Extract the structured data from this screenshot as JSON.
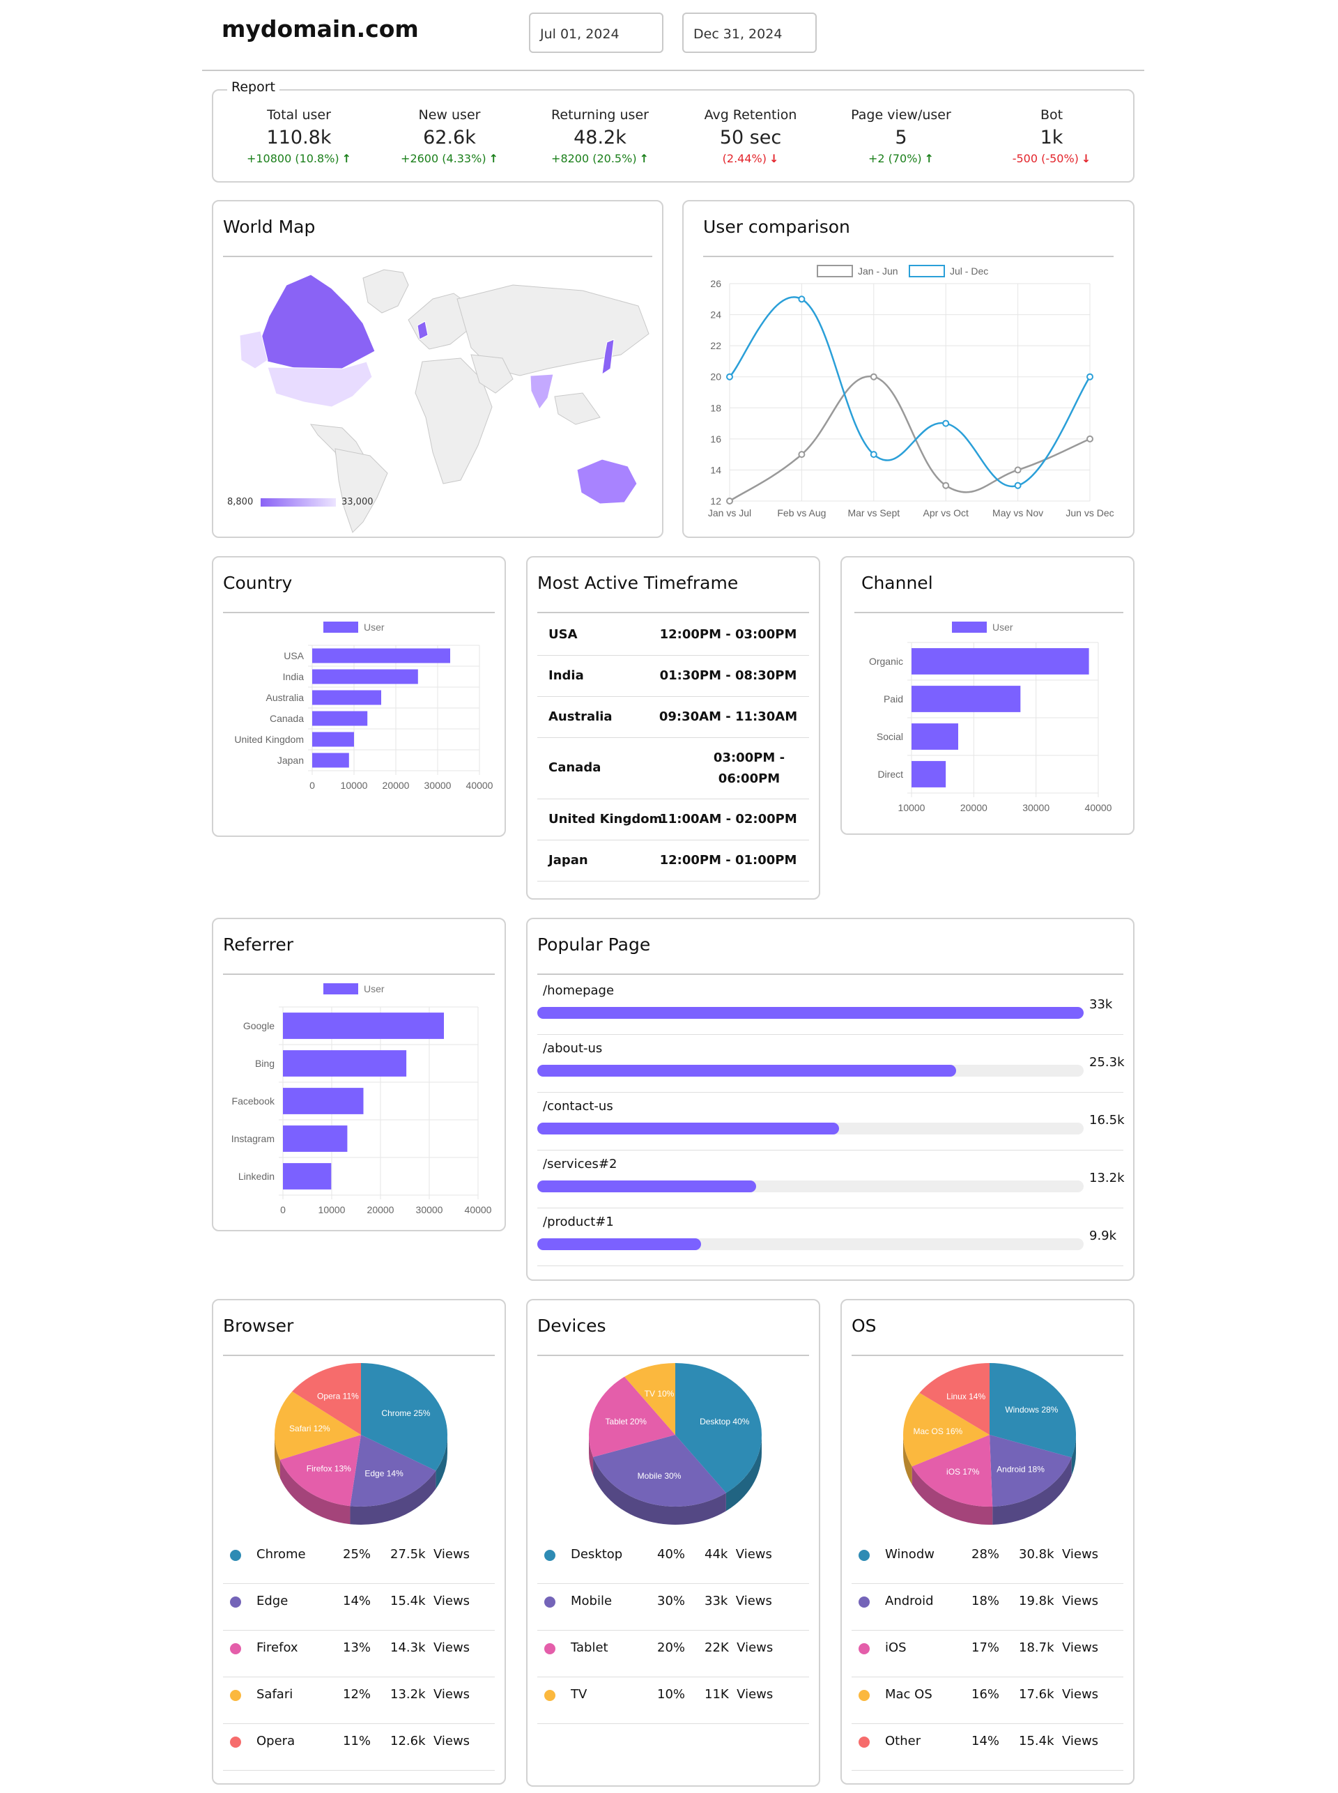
{
  "header": {
    "site": "mydomain.com",
    "start_date": "Jul 01, 2024",
    "end_date": "Dec 31, 2024"
  },
  "report": {
    "legend": "Report",
    "stats": [
      {
        "label": "Total user",
        "value": "110.8k",
        "change": "+10800 (10.8%)",
        "direction": "up"
      },
      {
        "label": "New user",
        "value": "62.6k",
        "change": "+2600 (4.33%)",
        "direction": "up"
      },
      {
        "label": "Returning user",
        "value": "48.2k",
        "change": "+8200 (20.5%)",
        "direction": "up"
      },
      {
        "label": "Avg Retention",
        "value": "50 sec",
        "change": "(2.44%)",
        "direction": "down"
      },
      {
        "label": "Page view/user",
        "value": "5",
        "change": "+2 (70%)",
        "direction": "up"
      },
      {
        "label": "Bot",
        "value": "1k",
        "change": "-500 (-50%)",
        "direction": "down"
      }
    ]
  },
  "world_map": {
    "title": "World Map",
    "legend_min": "8,800",
    "legend_max": "33,000",
    "colors": {
      "low": "#e8dcff",
      "high": "#8a63f5",
      "none": "#eeeeee"
    }
  },
  "user_comparison": {
    "title": "User comparison",
    "chart_data": {
      "type": "line",
      "categories": [
        "Jan vs Jul",
        "Feb vs Aug",
        "Mar vs Sept",
        "Apr vs Oct",
        "May vs Nov",
        "Jun vs Dec"
      ],
      "series": [
        {
          "name": "Jan - Jun",
          "values": [
            12,
            15,
            20,
            13,
            14,
            16
          ],
          "color": "#999999"
        },
        {
          "name": "Jul - Dec",
          "values": [
            20,
            25,
            15,
            17,
            13,
            20
          ],
          "color": "#2a9fd8"
        }
      ],
      "yticks": [
        "12",
        "14",
        "16",
        "18",
        "20",
        "22",
        "24",
        "26"
      ],
      "ylim": [
        12,
        26
      ],
      "grid": true,
      "legend": "top"
    }
  },
  "country": {
    "title": "Country",
    "chart_data": {
      "type": "bar",
      "orientation": "horizontal",
      "legend": "User",
      "categories": [
        "USA",
        "India",
        "Australia",
        "Canada",
        "United Kingdom",
        "Japan"
      ],
      "values": [
        33000,
        25300,
        16500,
        13200,
        10000,
        8800
      ],
      "xticks": [
        "0",
        "10000",
        "20000",
        "30000",
        "40000"
      ],
      "xlim": [
        0,
        40000
      ],
      "color": "#7b61ff"
    }
  },
  "timeframe": {
    "title": "Most Active Timeframe",
    "rows": [
      {
        "country": "USA",
        "time": "12:00PM - 03:00PM"
      },
      {
        "country": "India",
        "time": "01:30PM - 08:30PM"
      },
      {
        "country": "Australia",
        "time": "09:30AM - 11:30AM"
      },
      {
        "country": "Canada",
        "time": "03:00PM - 06:00PM"
      },
      {
        "country": "United Kingdom",
        "time": "11:00AM - 02:00PM"
      },
      {
        "country": "Japan",
        "time": "12:00PM - 01:00PM"
      }
    ]
  },
  "channel": {
    "title": "Channel",
    "chart_data": {
      "type": "bar",
      "orientation": "horizontal",
      "legend": "User",
      "categories": [
        "Organic",
        "Paid",
        "Social",
        "Direct"
      ],
      "values": [
        38500,
        27500,
        17500,
        15500
      ],
      "xticks": [
        "10000",
        "20000",
        "30000",
        "40000"
      ],
      "xlim": [
        10000,
        40000
      ],
      "color": "#7b61ff"
    }
  },
  "referrer": {
    "title": "Referrer",
    "chart_data": {
      "type": "bar",
      "orientation": "horizontal",
      "legend": "User",
      "categories": [
        "Google",
        "Bing",
        "Facebook",
        "Instagram",
        "Linkedin"
      ],
      "values": [
        33000,
        25300,
        16500,
        13200,
        9900
      ],
      "xticks": [
        "0",
        "10000",
        "20000",
        "30000",
        "40000"
      ],
      "xlim": [
        0,
        40000
      ],
      "color": "#7b61ff"
    }
  },
  "popular_page": {
    "title": "Popular Page",
    "items": [
      {
        "page": "/homepage",
        "value": "33k",
        "fraction": 1.0
      },
      {
        "page": "/about-us",
        "value": "25.3k",
        "fraction": 0.767
      },
      {
        "page": "/contact-us",
        "value": "16.5k",
        "fraction": 0.552
      },
      {
        "page": "/services#2",
        "value": "13.2k",
        "fraction": 0.401
      },
      {
        "page": "/product#1",
        "value": "9.9k",
        "fraction": 0.3
      }
    ]
  },
  "browser": {
    "title": "Browser",
    "chart_data": {
      "type": "pie",
      "labels": [
        "Chrome",
        "Edge",
        "Firefox",
        "Safari",
        "Opera"
      ],
      "values": [
        25,
        14,
        13,
        12,
        11
      ],
      "slice_labels": [
        "Chrome 25%",
        "Edge 14%",
        "Firefox 13%",
        "Safari 12%",
        "Opera 11%"
      ],
      "colors": [
        "#2e8bb4",
        "#7464b8",
        "#e45eaa",
        "#fbb83e",
        "#f66c6c"
      ]
    },
    "legend": [
      {
        "name": "Chrome",
        "pct": "25%",
        "views": "27.5k  Views",
        "color": "#2e8bb4"
      },
      {
        "name": "Edge",
        "pct": "14%",
        "views": "15.4k  Views",
        "color": "#7464b8"
      },
      {
        "name": "Firefox",
        "pct": "13%",
        "views": "14.3k  Views",
        "color": "#e45eaa"
      },
      {
        "name": "Safari",
        "pct": "12%",
        "views": "13.2k  Views",
        "color": "#fbb83e"
      },
      {
        "name": "Opera",
        "pct": "11%",
        "views": "12.6k  Views",
        "color": "#f66c6c"
      }
    ]
  },
  "devices": {
    "title": "Devices",
    "chart_data": {
      "type": "pie",
      "labels": [
        "Desktop",
        "Mobile",
        "Tablet",
        "TV"
      ],
      "values": [
        40,
        30,
        20,
        10
      ],
      "slice_labels": [
        "Desktop 40%",
        "Mobile 30%",
        "Tablet 20%",
        "TV 10%"
      ],
      "colors": [
        "#2e8bb4",
        "#7464b8",
        "#e45eaa",
        "#fbb83e"
      ]
    },
    "legend": [
      {
        "name": "Desktop",
        "pct": "40%",
        "views": "44k  Views",
        "color": "#2e8bb4"
      },
      {
        "name": "Mobile",
        "pct": "30%",
        "views": "33k  Views",
        "color": "#7464b8"
      },
      {
        "name": "Tablet",
        "pct": "20%",
        "views": "22K  Views",
        "color": "#e45eaa"
      },
      {
        "name": "TV",
        "pct": "10%",
        "views": "11K  Views",
        "color": "#fbb83e"
      }
    ]
  },
  "os": {
    "title": "OS",
    "chart_data": {
      "type": "pie",
      "labels": [
        "Windows",
        "Android",
        "iOS",
        "Mac OS",
        "Linux"
      ],
      "values": [
        28,
        18,
        17,
        16,
        14
      ],
      "slice_labels": [
        "Windows 28%",
        "Android 18%",
        "iOS 17%",
        "Mac OS 16%",
        "Linux 14%"
      ],
      "colors": [
        "#2e8bb4",
        "#7464b8",
        "#e45eaa",
        "#fbb83e",
        "#f66c6c"
      ]
    },
    "legend": [
      {
        "name": "Winodw",
        "pct": "28%",
        "views": "30.8k  Views",
        "color": "#2e8bb4"
      },
      {
        "name": "Android",
        "pct": "18%",
        "views": "19.8k  Views",
        "color": "#7464b8"
      },
      {
        "name": "iOS",
        "pct": "17%",
        "views": "18.7k  Views",
        "color": "#e45eaa"
      },
      {
        "name": "Mac OS",
        "pct": "16%",
        "views": "17.6k  Views",
        "color": "#fbb83e"
      },
      {
        "name": "Other",
        "pct": "14%",
        "views": "15.4k  Views",
        "color": "#f66c6c"
      }
    ]
  }
}
